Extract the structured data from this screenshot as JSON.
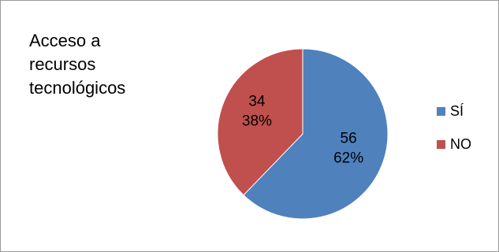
{
  "chart_data": {
    "type": "pie",
    "title_lines": [
      "Acceso a",
      "recursos",
      "tecnológicos"
    ],
    "categories": [
      "SÍ",
      "NO"
    ],
    "values": [
      56,
      34
    ],
    "percent_labels": [
      "62%",
      "38%"
    ],
    "colors": [
      "#4f81bd",
      "#c0504d"
    ],
    "legend_position": "right"
  }
}
